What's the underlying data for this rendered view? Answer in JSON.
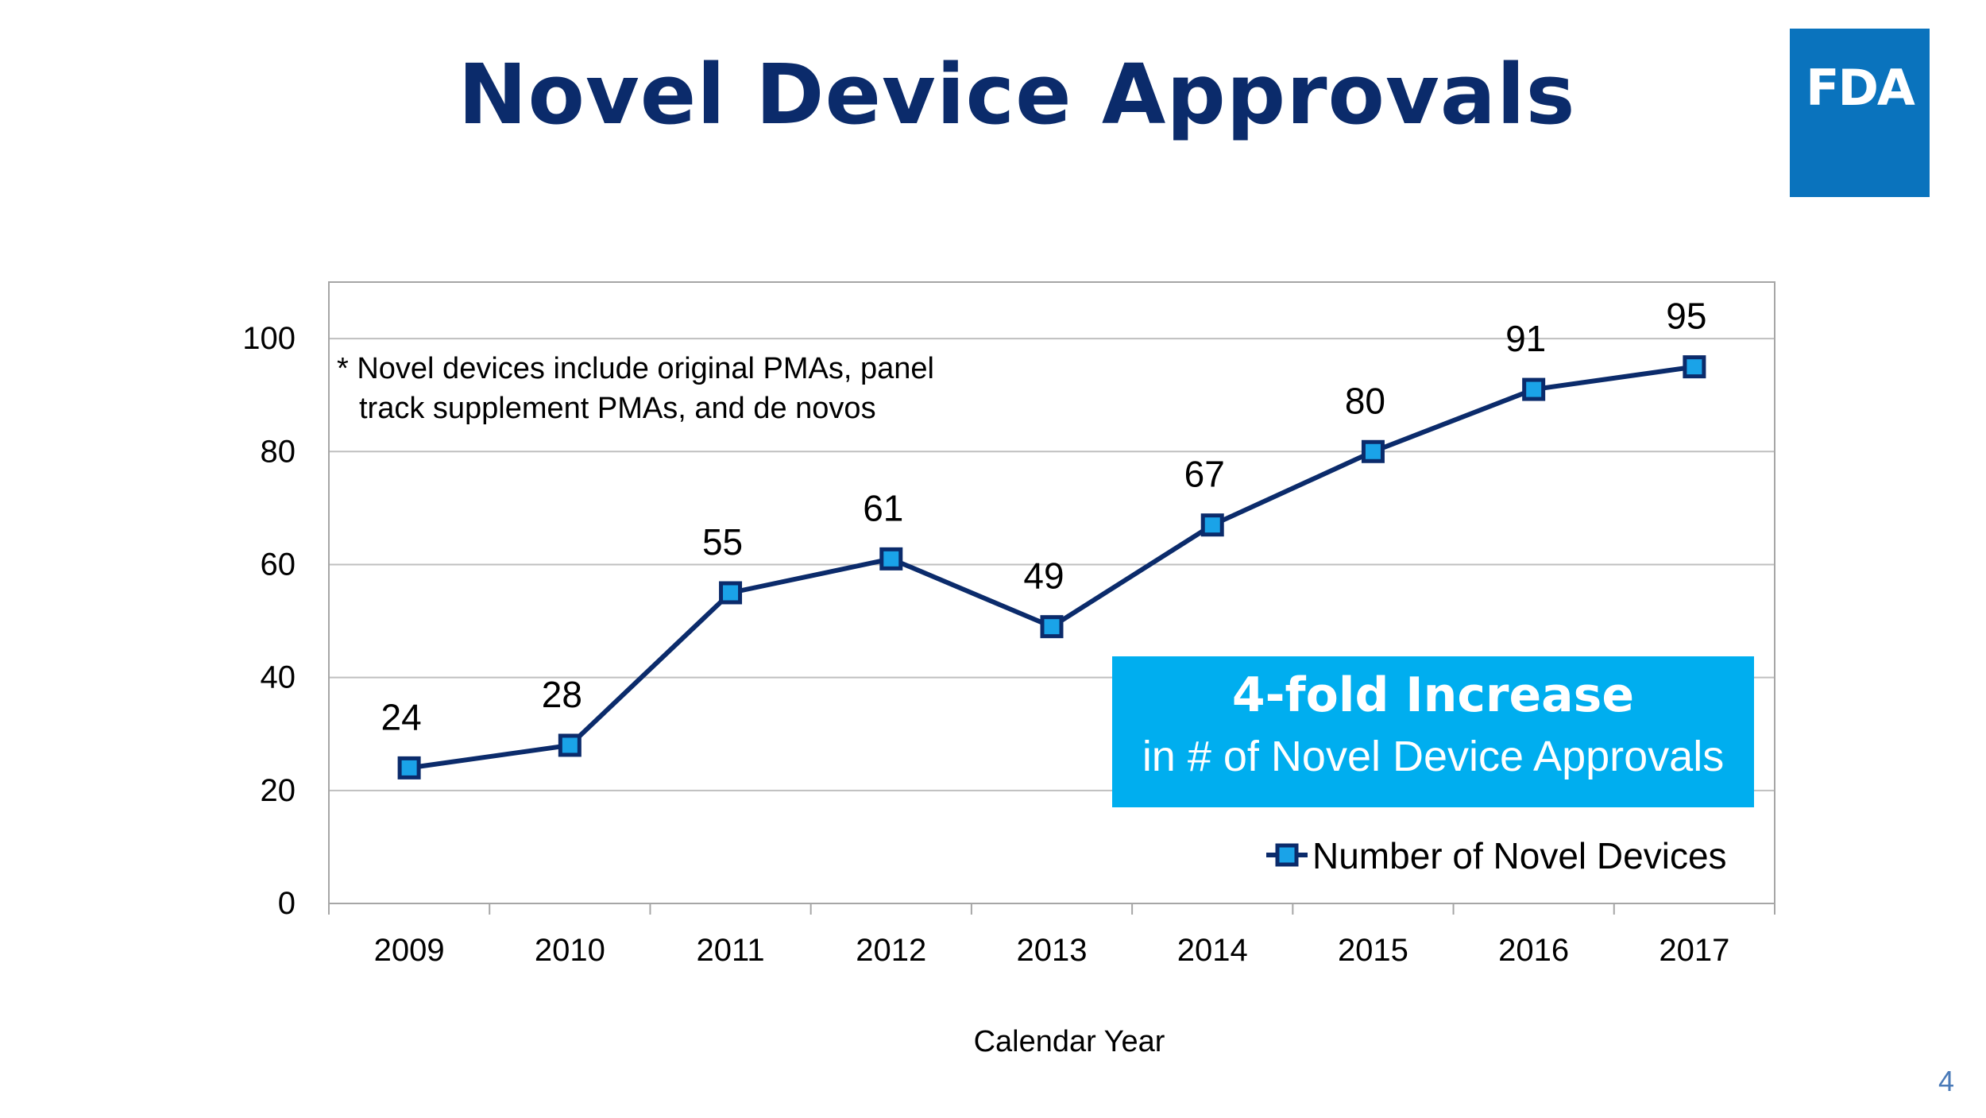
{
  "slide": {
    "title": "Novel Device Approvals",
    "logo_text": "FDA",
    "page_number": "4"
  },
  "colors": {
    "title": "#0b2b6b",
    "line": "#0b2b6b",
    "marker_fill": "#1aa3e8",
    "callout_bg": "#00aeef",
    "logo_bg": "#0a73bd"
  },
  "chart_data": {
    "type": "line",
    "title": "",
    "xlabel": "Calendar Year",
    "ylabel": "",
    "categories": [
      "2009",
      "2010",
      "2011",
      "2012",
      "2013",
      "2014",
      "2015",
      "2016",
      "2017"
    ],
    "series": [
      {
        "name": "Number of Novel Devices",
        "values": [
          24,
          28,
          55,
          61,
          49,
          67,
          80,
          91,
          95
        ]
      }
    ],
    "ylim": [
      0,
      110
    ],
    "yticks": [
      0,
      20,
      40,
      60,
      80,
      100
    ],
    "grid": true,
    "legend": "bottom-right",
    "footnote_line1": "* Novel devices include original PMAs, panel",
    "footnote_line2": "track supplement PMAs, and de novos",
    "callout_heading": "4-fold Increase",
    "callout_text": "in # of Novel Device Approvals"
  }
}
